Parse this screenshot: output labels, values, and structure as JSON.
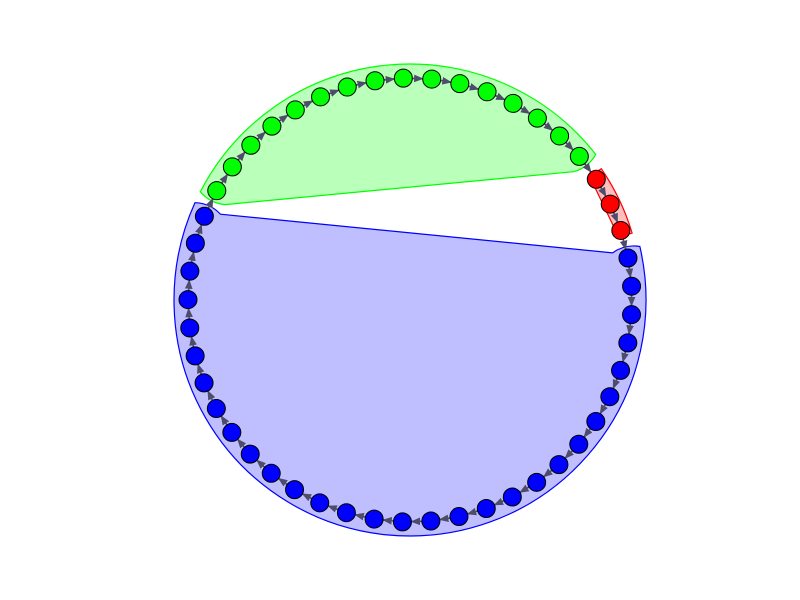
{
  "graph": {
    "type": "directed-cycle",
    "node_count": 49,
    "edge_color": "#4d4d6b",
    "node_stroke": "#000000",
    "groups": [
      {
        "id": "blue",
        "fill": "#0000ff",
        "hull_fill": "#0000ff",
        "hull_stroke": "#0000ff",
        "hull_opacity": 0.25,
        "node_count": 30
      },
      {
        "id": "green",
        "fill": "#00ff00",
        "hull_fill": "#00ff00",
        "hull_stroke": "#00ff00",
        "hull_opacity": 0.27,
        "node_count": 16
      },
      {
        "id": "red",
        "fill": "#ff0000",
        "hull_fill": "#ff0000",
        "hull_stroke": "#ff0000",
        "hull_opacity": 0.25,
        "node_count": 3
      }
    ]
  }
}
